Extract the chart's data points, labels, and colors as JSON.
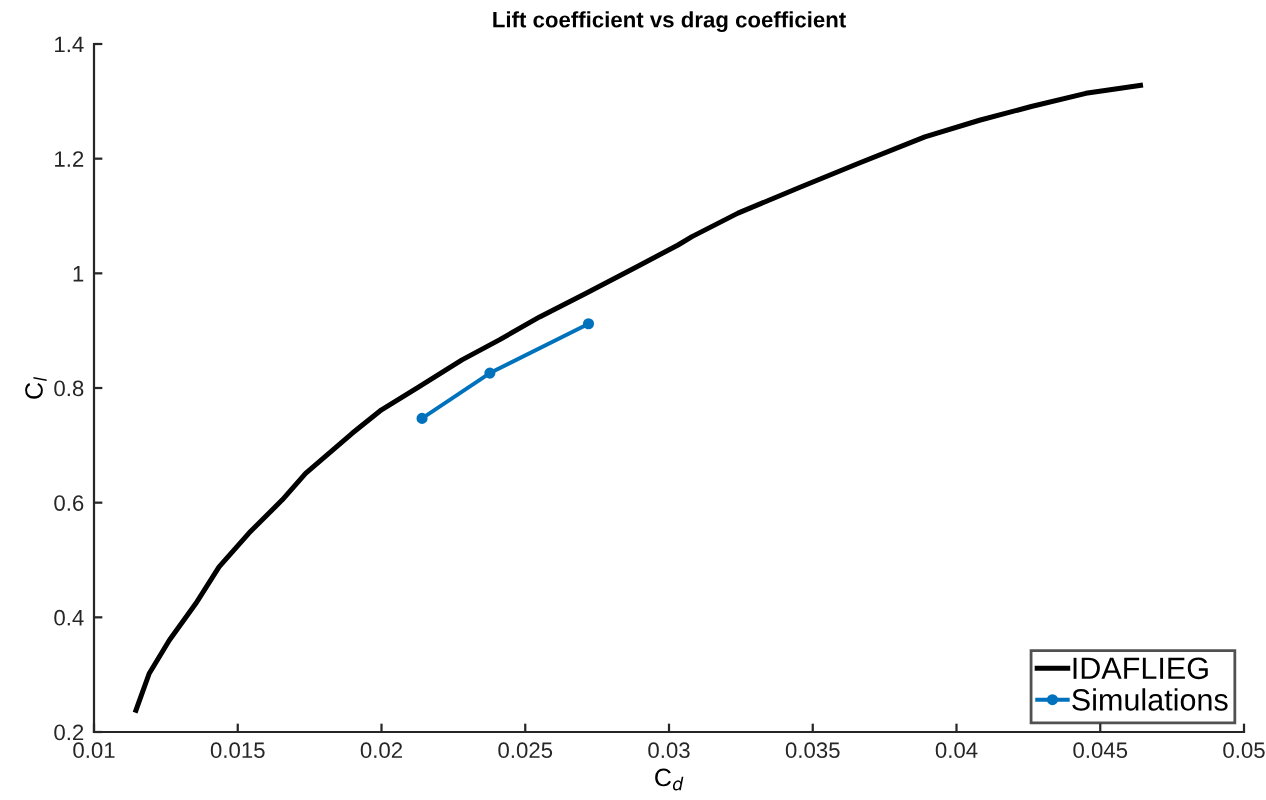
{
  "chart_data": {
    "type": "line",
    "title": "Lift coefficient vs drag coefficient",
    "xlabel": "C$_{d}$",
    "ylabel": "C$_{l}$",
    "series": [
      {
        "name": "IDAFLIEG",
        "color": "#000000",
        "marker": "none",
        "x": [
          0.01146,
          0.01192,
          0.01262,
          0.01354,
          0.01435,
          0.01539,
          0.01655,
          0.01736,
          0.01898,
          0.02,
          0.0213,
          0.0228,
          0.0241,
          0.0255,
          0.0271,
          0.0289,
          0.0303,
          0.0308,
          0.0324,
          0.0346,
          0.0366,
          0.0389,
          0.0408,
          0.0426,
          0.0445,
          0.0464
        ],
        "values": [
          0.238,
          0.302,
          0.36,
          0.424,
          0.488,
          0.547,
          0.605,
          0.651,
          0.721,
          0.762,
          0.802,
          0.849,
          0.884,
          0.924,
          0.965,
          1.012,
          1.049,
          1.064,
          1.105,
          1.151,
          1.192,
          1.238,
          1.267,
          1.291,
          1.314,
          1.328
        ]
      },
      {
        "name": "Simulations",
        "color": "#0072bd",
        "marker": "circle",
        "x": [
          0.02141,
          0.02377,
          0.0272
        ],
        "values": [
          0.747,
          0.826,
          0.912
        ]
      }
    ],
    "xlim": [
      0.01,
      0.05
    ],
    "xticks": [
      0.01,
      0.015,
      0.02,
      0.025,
      0.03,
      0.035,
      0.04,
      0.045,
      0.05
    ],
    "ylim": [
      0.2,
      1.4
    ],
    "yticks": [
      0.2,
      0.4,
      0.6,
      0.8,
      1,
      1.2,
      1.4
    ],
    "grid": false,
    "legend": "bottom right",
    "line_style": "solid"
  }
}
